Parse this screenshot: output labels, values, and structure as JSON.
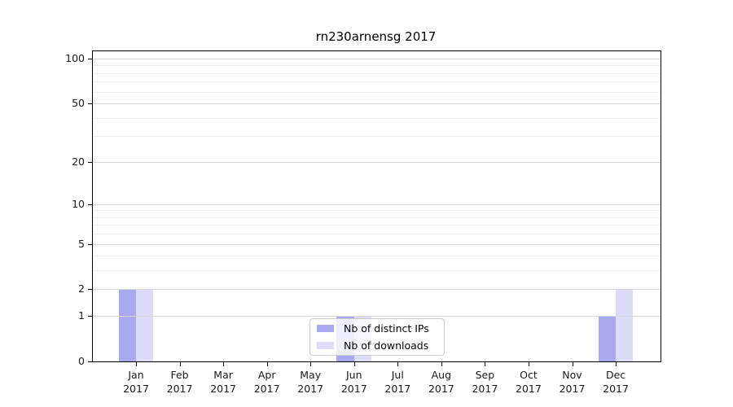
{
  "chart_data": {
    "type": "bar",
    "title": "rn230arnensg 2017",
    "categories": [
      "Jan",
      "Feb",
      "Mar",
      "Apr",
      "May",
      "Jun",
      "Jul",
      "Aug",
      "Sep",
      "Oct",
      "Nov",
      "Dec"
    ],
    "category_year": "2017",
    "series": [
      {
        "name": "Nb of distinct IPs",
        "color": "#a9a9f0",
        "values": [
          2,
          0,
          0,
          0,
          0,
          1,
          0,
          0,
          0,
          0,
          0,
          1
        ]
      },
      {
        "name": "Nb of downloads",
        "color": "#dcdcf8",
        "values": [
          2,
          0,
          0,
          0,
          0,
          1,
          0,
          0,
          0,
          0,
          0,
          2
        ]
      }
    ],
    "yscale": "log10(1+v)",
    "ylim": [
      0,
      111
    ],
    "ytick_labels": [
      100,
      50,
      20,
      10,
      5,
      2,
      1,
      0
    ],
    "major_gridlines": [
      1,
      2,
      5,
      10,
      20,
      50,
      100
    ],
    "minor_gridlines": [
      3,
      4,
      6,
      7,
      8,
      9,
      30,
      40,
      60,
      70,
      80,
      90
    ],
    "grid": "horizontal, drawn above bars",
    "legend_position": "inside plot, lower center",
    "colors": {
      "bar_distinct_ips": "#a9a9f0",
      "bar_downloads": "#dcdcf8",
      "major_grid": "#d8d8d8",
      "minor_grid": "#efefef",
      "axis": "#000000",
      "tick_text": "#1a1a1a",
      "legend_border": "#cccccc",
      "legend_background": "rgba(255,255,255,0.8)"
    }
  }
}
